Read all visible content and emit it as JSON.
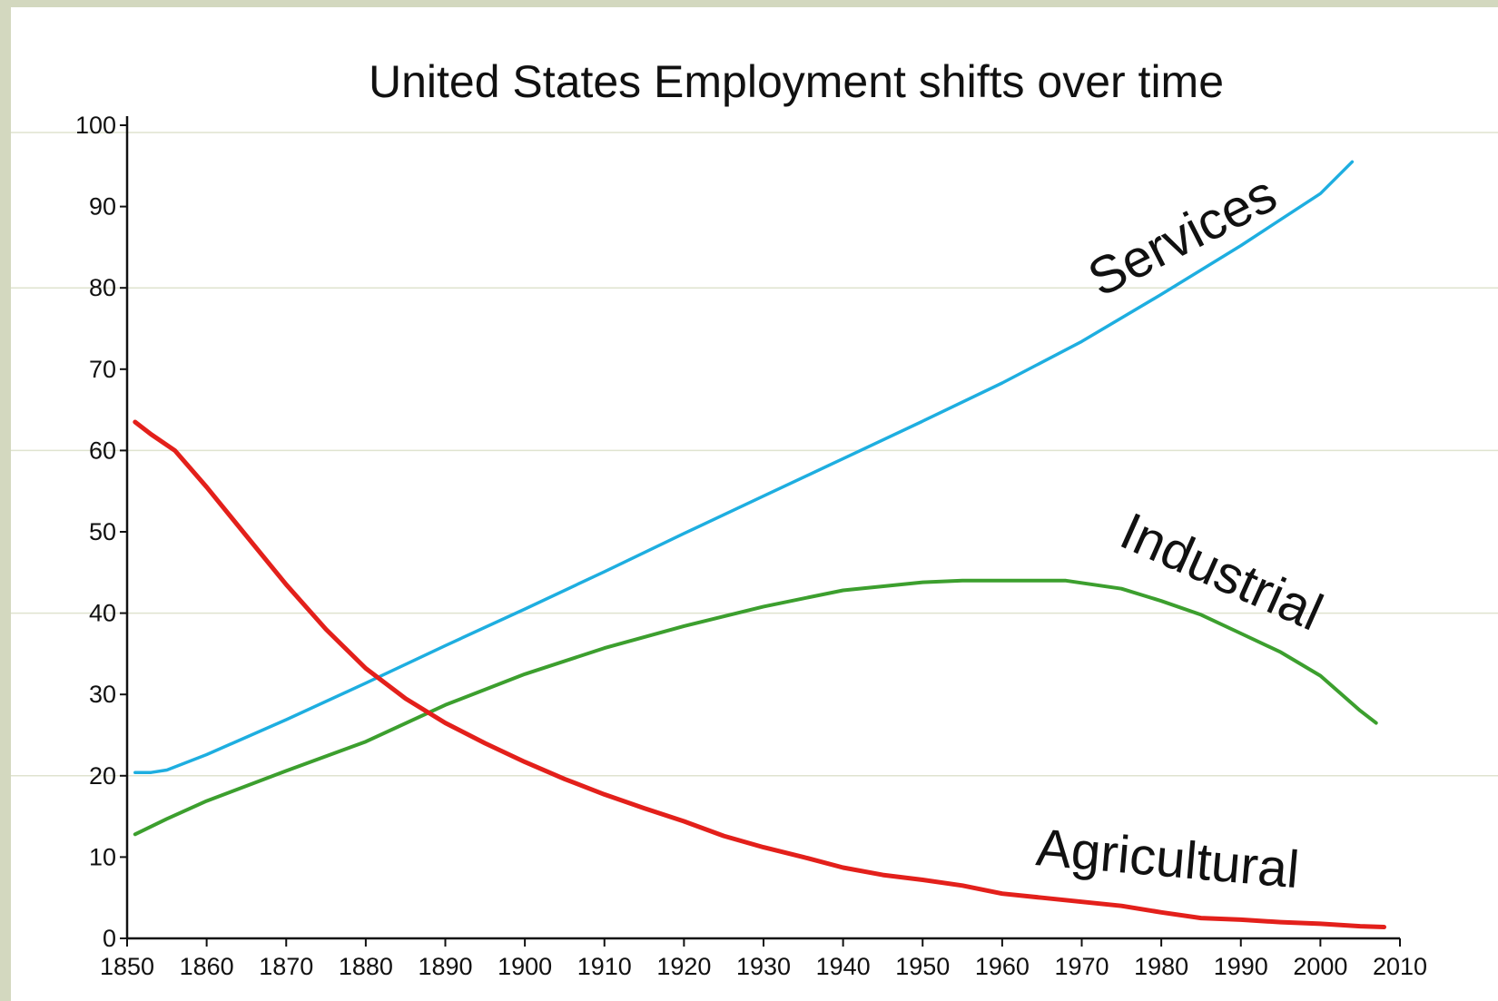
{
  "colors": {
    "background": "#d3d8bf",
    "services": "#1eaee0",
    "industrial": "#3c9f2e",
    "agricultural": "#e3201b"
  },
  "chart_data": {
    "type": "line",
    "title": "United States Employment shifts over time",
    "xlabel": "",
    "ylabel": "",
    "xlim": [
      1850,
      2010
    ],
    "ylim": [
      0,
      100
    ],
    "x_ticks": [
      1850,
      1860,
      1870,
      1880,
      1890,
      1900,
      1910,
      1920,
      1930,
      1940,
      1950,
      1960,
      1970,
      1980,
      1990,
      2000,
      2010
    ],
    "y_ticks": [
      0,
      10,
      20,
      30,
      40,
      50,
      60,
      70,
      80,
      90,
      100
    ],
    "grid": "horizontal",
    "legend": "none",
    "series": [
      {
        "name": "Services",
        "color_key": "services",
        "x": [
          1851,
          1853,
          1855,
          1860,
          1870,
          1880,
          1890,
          1900,
          1910,
          1920,
          1930,
          1940,
          1950,
          1960,
          1970,
          1980,
          1990,
          2000,
          2004
        ],
        "y": [
          20.4,
          20.4,
          20.7,
          22.6,
          26.9,
          31.4,
          36.0,
          40.5,
          45.1,
          49.8,
          54.4,
          59.0,
          63.6,
          68.3,
          73.4,
          79.2,
          85.2,
          91.6,
          95.5
        ]
      },
      {
        "name": "Industrial",
        "color_key": "industrial",
        "x": [
          1851,
          1855,
          1860,
          1870,
          1880,
          1890,
          1900,
          1910,
          1920,
          1930,
          1940,
          1950,
          1955,
          1960,
          1965,
          1968,
          1975,
          1980,
          1985,
          1990,
          1995,
          2000,
          2005,
          2007
        ],
        "y": [
          12.8,
          14.7,
          16.9,
          20.6,
          24.2,
          28.7,
          32.5,
          35.7,
          38.4,
          40.8,
          42.8,
          43.8,
          44.0,
          44.0,
          44.0,
          44.0,
          43.0,
          41.5,
          39.8,
          37.5,
          35.2,
          32.3,
          28.0,
          26.5
        ]
      },
      {
        "name": "Agricultural",
        "color_key": "agricultural",
        "x": [
          1851,
          1853,
          1856,
          1860,
          1865,
          1870,
          1875,
          1880,
          1885,
          1890,
          1895,
          1900,
          1905,
          1910,
          1915,
          1920,
          1925,
          1930,
          1935,
          1940,
          1945,
          1950,
          1955,
          1960,
          1965,
          1970,
          1975,
          1980,
          1985,
          1990,
          1995,
          2000,
          2005,
          2008
        ],
        "y": [
          63.5,
          62.0,
          60.0,
          55.5,
          49.5,
          43.5,
          38.0,
          33.2,
          29.5,
          26.5,
          24.0,
          21.7,
          19.6,
          17.7,
          16.0,
          14.4,
          12.6,
          11.2,
          10.0,
          8.7,
          7.8,
          7.2,
          6.5,
          5.5,
          5.0,
          4.5,
          4.0,
          3.2,
          2.5,
          2.3,
          2.0,
          1.8,
          1.5,
          1.4
        ]
      }
    ],
    "annotations": [
      "Services",
      "Industrial",
      "Agricultural"
    ]
  }
}
